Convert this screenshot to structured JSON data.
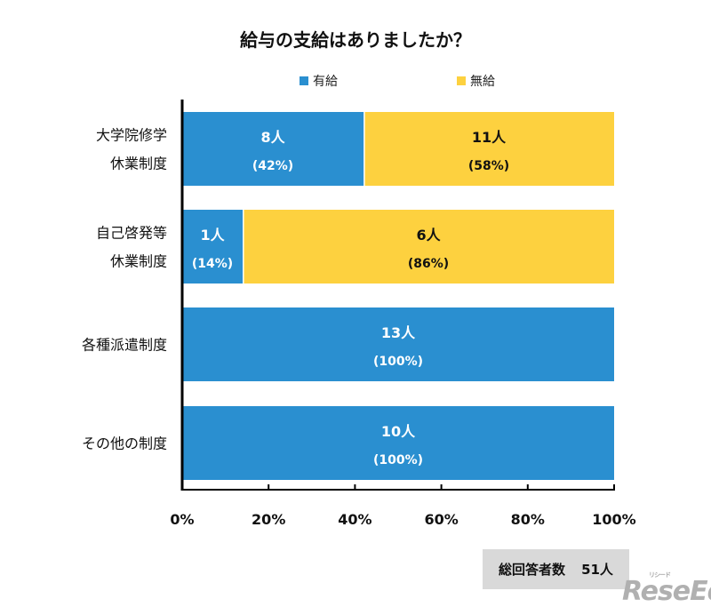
{
  "chart_data": {
    "type": "bar",
    "orientation": "horizontal",
    "stacked": true,
    "title": "給与の支給はありましたか？",
    "categories": [
      [
        "大学院修学",
        "休業制度"
      ],
      [
        "自己啓発等",
        "休業制度"
      ],
      [
        "各種派遣制度"
      ],
      [
        "その他の制度"
      ]
    ],
    "series": [
      {
        "name": "有給",
        "color": "#2a8fd0",
        "counts": [
          "8人",
          "1人",
          "13人",
          "10人"
        ],
        "values": [
          42,
          14,
          100,
          100
        ],
        "labels": [
          "(42%)",
          "(14%)",
          "(100%)",
          "(100%)"
        ]
      },
      {
        "name": "無給",
        "color": "#fdd13f",
        "counts": [
          "11人",
          "6人",
          "",
          ""
        ],
        "values": [
          58,
          86,
          0,
          0
        ],
        "labels": [
          "(58%)",
          "(86%)",
          "",
          ""
        ]
      }
    ],
    "xlim": [
      0,
      100
    ],
    "xticks": [
      "0%",
      "20%",
      "40%",
      "60%",
      "80%",
      "100%"
    ],
    "legend": "top"
  },
  "total": {
    "label": "総回答者数",
    "value": "51人"
  },
  "watermark": "ReseEd"
}
